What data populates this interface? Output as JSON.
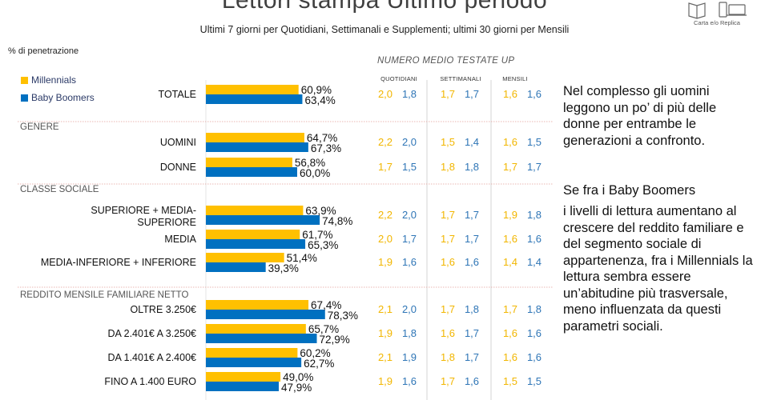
{
  "title": "Lettori stampa Ultimo periodo",
  "subtitle": "Ultimi 7 giorni per Quotidiani, Settimanali e Supplementi; ultimi 30 giorni per Mensili",
  "logo_label": "Carta e/o Replica",
  "y_axis_label": "% di penetrazione",
  "legend": [
    {
      "label": "Millennials",
      "color": "#FFC000"
    },
    {
      "label": "Baby Boomers",
      "color": "#0070C0"
    }
  ],
  "numero_header": "NUMERO MEDIO TESTATE UP",
  "col_headers": [
    "QUOTIDIANI",
    "SETTIMANALI",
    "MENSILI"
  ],
  "narrative": [
    "Nel complesso gli uomini leggono un po’ di più delle donne per entrambe le generazioni a confronto.",
    "Se fra i Baby Boomers",
    "i livelli di lettura aumentano al crescere del reddito familiare e del segmento sociale di appartenenza, fra i Millennials la lettura sembra essere un’abitudine più trasversale, meno influenzata da questi parametri sociali."
  ],
  "chart_data": {
    "type": "bar",
    "orientation": "horizontal",
    "title": "Lettori stampa Ultimo periodo",
    "series": [
      {
        "name": "Millennials",
        "color": "#FFC000"
      },
      {
        "name": "Baby Boomers",
        "color": "#0070C0"
      }
    ],
    "sections": [
      "GENERE",
      "CLASSE SOCIALE",
      "REDDITO MENSILE FAMILIARE NETTO"
    ],
    "rows": [
      {
        "label": "TOTALE",
        "mil": 60.9,
        "bb": 63.4,
        "mil_label": "60,9%",
        "bb_label": "63,4%",
        "quot": [
          "2,0",
          "1,8"
        ],
        "sett": [
          "1,7",
          "1,7"
        ],
        "mens": [
          "1,6",
          "1,6"
        ]
      },
      {
        "label": "UOMINI",
        "mil": 64.7,
        "bb": 67.3,
        "mil_label": "64,7%",
        "bb_label": "67,3%",
        "quot": [
          "2,2",
          "2,0"
        ],
        "sett": [
          "1,5",
          "1,4"
        ],
        "mens": [
          "1,6",
          "1,5"
        ]
      },
      {
        "label": "DONNE",
        "mil": 56.8,
        "bb": 60.0,
        "mil_label": "56,8%",
        "bb_label": "60,0%",
        "quot": [
          "1,7",
          "1,5"
        ],
        "sett": [
          "1,8",
          "1,8"
        ],
        "mens": [
          "1,7",
          "1,7"
        ]
      },
      {
        "label": "SUPERIORE + MEDIA-",
        "label2": "SUPERIORE",
        "mil": 63.9,
        "bb": 74.8,
        "mil_label": "63,9%",
        "bb_label": "74,8%",
        "quot": [
          "2,2",
          "2,0"
        ],
        "sett": [
          "1,7",
          "1,7"
        ],
        "mens": [
          "1,9",
          "1,8"
        ]
      },
      {
        "label": "MEDIA",
        "mil": 61.7,
        "bb": 65.3,
        "mil_label": "61,7%",
        "bb_label": "65,3%",
        "quot": [
          "2,0",
          "1,7"
        ],
        "sett": [
          "1,7",
          "1,7"
        ],
        "mens": [
          "1,6",
          "1,6"
        ]
      },
      {
        "label": "MEDIA-INFERIORE + INFERIORE",
        "mil": 51.4,
        "bb": 39.3,
        "mil_label": "51,4%",
        "bb_label": "39,3%",
        "quot": [
          "1,9",
          "1,6"
        ],
        "sett": [
          "1,6",
          "1,6"
        ],
        "mens": [
          "1,4",
          "1,4"
        ]
      },
      {
        "label": "OLTRE 3.250€",
        "mil": 67.4,
        "bb": 78.3,
        "mil_label": "67,4%",
        "bb_label": "78,3%",
        "quot": [
          "2,1",
          "2,0"
        ],
        "sett": [
          "1,7",
          "1,8"
        ],
        "mens": [
          "1,7",
          "1,8"
        ]
      },
      {
        "label": "DA 2.401€ A 3.250€",
        "mil": 65.7,
        "bb": 72.9,
        "mil_label": "65,7%",
        "bb_label": "72,9%",
        "quot": [
          "1,9",
          "1,8"
        ],
        "sett": [
          "1,6",
          "1,7"
        ],
        "mens": [
          "1,6",
          "1,6"
        ]
      },
      {
        "label": "DA 1.401€ A 2.400€",
        "mil": 60.2,
        "bb": 62.7,
        "mil_label": "60,2%",
        "bb_label": "62,7%",
        "quot": [
          "2,1",
          "1,9"
        ],
        "sett": [
          "1,8",
          "1,7"
        ],
        "mens": [
          "1,6",
          "1,6"
        ]
      },
      {
        "label": "FINO A 1.400 EURO",
        "mil": 49.0,
        "bb": 47.9,
        "mil_label": "49,0%",
        "bb_label": "47,9%",
        "quot": [
          "1,9",
          "1,6"
        ],
        "sett": [
          "1,7",
          "1,6"
        ],
        "mens": [
          "1,5",
          "1,5"
        ]
      }
    ]
  }
}
